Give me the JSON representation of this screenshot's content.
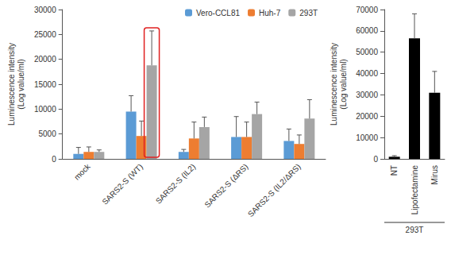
{
  "chart_data": [
    {
      "type": "bar",
      "categories": [
        "mock",
        "SARS2-S (WT)",
        "SARS2-S (IL2)",
        "SARS2-S (ΔRS)",
        "SARS2-S (IL2/ΔRS)"
      ],
      "ylabel": "Luminescence intensity\n(Log value/ml)",
      "series": [
        {
          "name": "Vero-CCL81",
          "color": "#5b9bd5",
          "values": [
            1000,
            9500,
            1400,
            4400,
            3600
          ],
          "errors": [
            1300,
            3200,
            500,
            4100,
            2400
          ]
        },
        {
          "name": "Huh-7",
          "color": "#ed7d31",
          "values": [
            1400,
            4600,
            4100,
            4400,
            3000
          ],
          "errors": [
            1000,
            3000,
            3300,
            3000,
            1800
          ]
        },
        {
          "name": "293T",
          "color": "#a5a5a5",
          "values": [
            1400,
            18800,
            6400,
            9000,
            8100
          ],
          "errors": [
            400,
            6900,
            2000,
            2400,
            3800
          ]
        }
      ],
      "ylim": [
        0,
        30000
      ],
      "yticks": [
        0,
        5000,
        10000,
        15000,
        20000,
        25000,
        30000
      ],
      "grid": false,
      "legend": "top"
    },
    {
      "type": "bar",
      "categories": [
        "NT",
        "Lipofectamine",
        "Mirus"
      ],
      "values": [
        1000,
        56500,
        31000
      ],
      "errors": [
        500,
        11500,
        10000
      ],
      "color": "#000000",
      "ylabel": "Luminescence intensity\n(Log value/ml)",
      "xlabel": "293T",
      "ylim": [
        0,
        70000
      ],
      "yticks": [
        0,
        10000,
        20000,
        30000,
        40000,
        50000,
        60000,
        70000
      ],
      "grid": false
    }
  ]
}
